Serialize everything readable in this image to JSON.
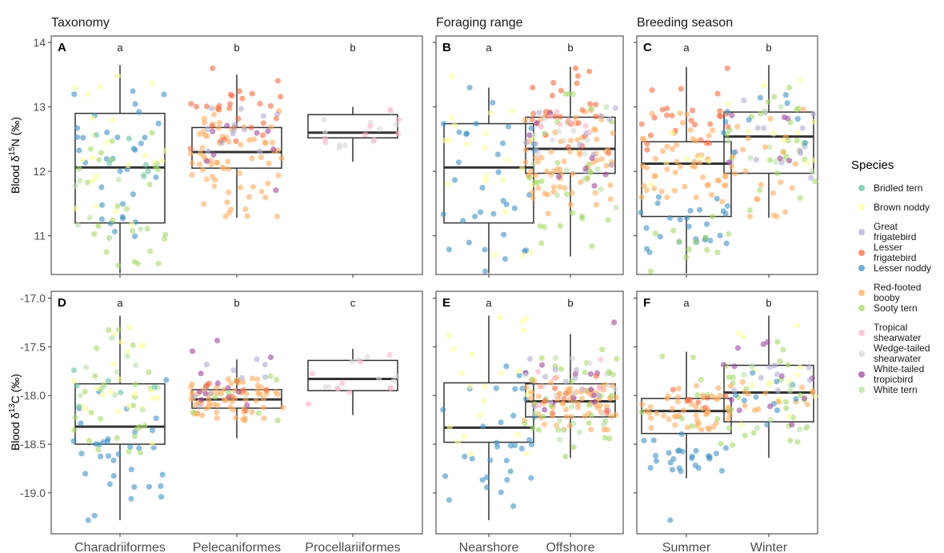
{
  "figure": {
    "facet_titles": [
      "Taxonomy",
      "Foraging range",
      "Breeding season"
    ],
    "ytitle_top": {
      "prefix": "Blood δ",
      "sup": "15",
      "suffix": "N (‰)"
    },
    "ytitle_bottom": {
      "prefix": "Blood δ",
      "sup": "13",
      "suffix": "C (‰)"
    }
  },
  "legend": {
    "title": "Species",
    "items": [
      {
        "lines": [
          "Bridled tern"
        ],
        "color": "#66c2a5"
      },
      {
        "lines": [
          "Brown noddy"
        ],
        "color": "#ffff99"
      },
      {
        "lines": [
          "Great",
          "frigatebird"
        ],
        "color": "#b2abd2"
      },
      {
        "lines": [
          "Lesser",
          "frigatebird"
        ],
        "color": "#f46d43"
      },
      {
        "lines": [
          "Lesser noddy"
        ],
        "color": "#4393c3"
      },
      {
        "lines": [
          "Red-footed",
          "booby"
        ],
        "color": "#fdae61"
      },
      {
        "lines": [
          "Sooty tern"
        ],
        "color": "#a6d96a"
      },
      {
        "lines": [
          "Tropical",
          "shearwater"
        ],
        "color": "#fbb4c4"
      },
      {
        "lines": [
          "Wedge-tailed",
          "shearwater"
        ],
        "color": "#d9d9d9"
      },
      {
        "lines": [
          "White-tailed",
          "tropicbird"
        ],
        "color": "#9e4a9c"
      },
      {
        "lines": [
          "White tern"
        ],
        "color": "#b8e0a8"
      }
    ]
  },
  "chart_data": [
    {
      "panel": "A",
      "facet": "Taxonomy",
      "type": "box",
      "ylabel": "Blood δ15N (‰)",
      "ylim": [
        10.4,
        14.1
      ],
      "yticks": [
        11,
        12,
        13,
        14
      ],
      "ytick_labels": [
        "11",
        "12",
        "13",
        "14"
      ],
      "categories": [
        "Charadriiformes",
        "Pelecaniformes",
        "Procellariiformes"
      ],
      "sig": [
        "a",
        "b",
        "b"
      ],
      "boxes": [
        {
          "q1": 11.2,
          "median": 12.06,
          "q3": 12.9,
          "wlo": 10.42,
          "whi": 13.65
        },
        {
          "q1": 12.05,
          "median": 12.3,
          "q3": 12.68,
          "wlo": 11.28,
          "whi": 13.5
        },
        {
          "q1": 12.52,
          "median": 12.6,
          "q3": 12.88,
          "wlo": 12.15,
          "whi": 13.0
        }
      ],
      "points": [
        {
          "species": "Lesser noddy",
          "cat": 0,
          "n": 34,
          "min": 10.45,
          "max": 13.3
        },
        {
          "species": "Sooty tern",
          "cat": 0,
          "n": 26,
          "min": 10.45,
          "max": 13.2
        },
        {
          "species": "Brown noddy",
          "cat": 0,
          "n": 22,
          "min": 10.7,
          "max": 13.5
        },
        {
          "species": "White tern",
          "cat": 0,
          "n": 10,
          "min": 10.7,
          "max": 13.0
        },
        {
          "species": "Bridled tern",
          "cat": 0,
          "n": 6,
          "min": 11.3,
          "max": 12.8
        },
        {
          "species": "Red-footed booby",
          "cat": 1,
          "n": 70,
          "min": 11.3,
          "max": 13.0
        },
        {
          "species": "Lesser frigatebird",
          "cat": 1,
          "n": 28,
          "min": 12.2,
          "max": 13.6
        },
        {
          "species": "Great frigatebird",
          "cat": 1,
          "n": 12,
          "min": 11.9,
          "max": 13.1
        },
        {
          "species": "White-tailed tropicbird",
          "cat": 1,
          "n": 8,
          "min": 11.7,
          "max": 12.9
        },
        {
          "species": "Wedge-tailed shearwater",
          "cat": 2,
          "n": 10,
          "min": 12.1,
          "max": 13.0
        },
        {
          "species": "Tropical shearwater",
          "cat": 2,
          "n": 8,
          "min": 12.3,
          "max": 13.0
        }
      ]
    },
    {
      "panel": "B",
      "facet": "Foraging range",
      "type": "box",
      "ylim": [
        10.4,
        14.1
      ],
      "yticks": [
        11,
        12,
        13,
        14
      ],
      "categories": [
        "Nearshore",
        "Offshore"
      ],
      "sig": [
        "a",
        "b"
      ],
      "boxes": [
        {
          "q1": 11.2,
          "median": 12.06,
          "q3": 12.74,
          "wlo": 10.42,
          "whi": 13.3
        },
        {
          "q1": 11.97,
          "median": 12.35,
          "q3": 12.84,
          "wlo": 10.68,
          "whi": 13.62
        }
      ],
      "points": [
        {
          "species": "Lesser noddy",
          "cat": 0,
          "n": 34,
          "min": 10.45,
          "max": 13.3
        },
        {
          "species": "Brown noddy",
          "cat": 0,
          "n": 22,
          "min": 10.7,
          "max": 13.6
        },
        {
          "species": "Red-footed booby",
          "cat": 1,
          "n": 70,
          "min": 11.3,
          "max": 13.0
        },
        {
          "species": "Lesser frigatebird",
          "cat": 1,
          "n": 28,
          "min": 12.2,
          "max": 13.6
        },
        {
          "species": "Sooty tern",
          "cat": 1,
          "n": 26,
          "min": 10.45,
          "max": 13.2
        },
        {
          "species": "Great frigatebird",
          "cat": 1,
          "n": 12,
          "min": 11.9,
          "max": 13.1
        },
        {
          "species": "White tern",
          "cat": 1,
          "n": 10,
          "min": 10.7,
          "max": 13.0
        },
        {
          "species": "White-tailed tropicbird",
          "cat": 1,
          "n": 8,
          "min": 11.7,
          "max": 12.9
        },
        {
          "species": "Wedge-tailed shearwater",
          "cat": 1,
          "n": 10,
          "min": 12.1,
          "max": 13.0
        },
        {
          "species": "Tropical shearwater",
          "cat": 1,
          "n": 8,
          "min": 12.3,
          "max": 13.0
        }
      ]
    },
    {
      "panel": "C",
      "facet": "Breeding season",
      "type": "box",
      "ylim": [
        10.4,
        14.1
      ],
      "yticks": [
        11,
        12,
        13,
        14
      ],
      "categories": [
        "Summer",
        "Winter"
      ],
      "sig": [
        "a",
        "b"
      ],
      "boxes": [
        {
          "q1": 11.3,
          "median": 12.12,
          "q3": 12.46,
          "wlo": 10.42,
          "whi": 13.62
        },
        {
          "q1": 11.97,
          "median": 12.54,
          "q3": 12.92,
          "wlo": 11.28,
          "whi": 13.65
        }
      ],
      "points": [
        {
          "species": "Red-footed booby",
          "cat": 0,
          "n": 50,
          "min": 11.4,
          "max": 12.9
        },
        {
          "species": "Lesser frigatebird",
          "cat": 0,
          "n": 26,
          "min": 12.2,
          "max": 13.6
        },
        {
          "species": "Lesser noddy",
          "cat": 0,
          "n": 26,
          "min": 10.45,
          "max": 11.7
        },
        {
          "species": "Sooty tern",
          "cat": 0,
          "n": 12,
          "min": 10.45,
          "max": 11.3
        },
        {
          "species": "Brown noddy",
          "cat": 0,
          "n": 6,
          "min": 11.6,
          "max": 12.6
        },
        {
          "species": "Sooty tern",
          "cat": 1,
          "n": 24,
          "min": 11.4,
          "max": 13.4
        },
        {
          "species": "Red-footed booby",
          "cat": 1,
          "n": 26,
          "min": 11.3,
          "max": 13.0
        },
        {
          "species": "Great frigatebird",
          "cat": 1,
          "n": 14,
          "min": 11.9,
          "max": 13.1
        },
        {
          "species": "Lesser noddy",
          "cat": 1,
          "n": 10,
          "min": 12.2,
          "max": 13.3
        },
        {
          "species": "Brown noddy",
          "cat": 1,
          "n": 10,
          "min": 12.0,
          "max": 13.6
        },
        {
          "species": "White tern",
          "cat": 1,
          "n": 8,
          "min": 11.7,
          "max": 13.0
        },
        {
          "species": "White-tailed tropicbird",
          "cat": 1,
          "n": 6,
          "min": 12.0,
          "max": 12.9
        }
      ]
    },
    {
      "panel": "D",
      "facet": "Taxonomy",
      "type": "box",
      "ylabel": "Blood δ13C (‰)",
      "ylim": [
        -19.42,
        -16.93
      ],
      "yticks": [
        -17.0,
        -17.5,
        -18.0,
        -18.5,
        -19.0
      ],
      "ytick_labels": [
        "-17.0",
        "-17.5",
        "-18.0",
        "-18.5",
        "-19.0"
      ],
      "categories": [
        "Charadriiformes",
        "Pelecaniformes",
        "Procellariiformes"
      ],
      "sig": [
        "a",
        "b",
        "c"
      ],
      "boxes": [
        {
          "q1": -18.5,
          "median": -18.32,
          "q3": -17.88,
          "wlo": -19.28,
          "whi": -17.18
        },
        {
          "q1": -18.13,
          "median": -18.04,
          "q3": -17.94,
          "wlo": -18.44,
          "whi": -17.63
        },
        {
          "q1": -17.95,
          "median": -17.83,
          "q3": -17.64,
          "wlo": -18.2,
          "whi": -17.52
        }
      ],
      "points": [
        {
          "species": "Lesser noddy",
          "cat": 0,
          "n": 34,
          "min": -19.28,
          "max": -17.7
        },
        {
          "species": "Sooty tern",
          "cat": 0,
          "n": 26,
          "min": -18.7,
          "max": -17.3
        },
        {
          "species": "Brown noddy",
          "cat": 0,
          "n": 22,
          "min": -18.6,
          "max": -17.2
        },
        {
          "species": "White tern",
          "cat": 0,
          "n": 10,
          "min": -18.6,
          "max": -17.4
        },
        {
          "species": "Bridled tern",
          "cat": 0,
          "n": 6,
          "min": -18.3,
          "max": -17.6
        },
        {
          "species": "Red-footed booby",
          "cat": 1,
          "n": 70,
          "min": -18.3,
          "max": -17.8
        },
        {
          "species": "White-tailed tropicbird",
          "cat": 1,
          "n": 12,
          "min": -18.5,
          "max": -17.25
        },
        {
          "species": "Great frigatebird",
          "cat": 1,
          "n": 10,
          "min": -18.2,
          "max": -17.6
        },
        {
          "species": "Sooty tern",
          "cat": 1,
          "n": 8,
          "min": -18.3,
          "max": -17.8
        },
        {
          "species": "Lesser frigatebird",
          "cat": 1,
          "n": 8,
          "min": -18.2,
          "max": -17.8
        },
        {
          "species": "Wedge-tailed shearwater",
          "cat": 2,
          "n": 10,
          "min": -18.2,
          "max": -17.5
        },
        {
          "species": "Tropical shearwater",
          "cat": 2,
          "n": 8,
          "min": -18.1,
          "max": -17.55
        }
      ]
    },
    {
      "panel": "E",
      "facet": "Foraging range",
      "type": "box",
      "ylim": [
        -19.42,
        -16.93
      ],
      "yticks": [
        -17.0,
        -17.5,
        -18.0,
        -18.5,
        -19.0
      ],
      "categories": [
        "Nearshore",
        "Offshore"
      ],
      "sig": [
        "a",
        "b"
      ],
      "boxes": [
        {
          "q1": -18.48,
          "median": -18.33,
          "q3": -17.87,
          "wlo": -19.28,
          "whi": -17.18
        },
        {
          "q1": -18.22,
          "median": -18.06,
          "q3": -17.88,
          "wlo": -18.64,
          "whi": -17.37
        }
      ],
      "points": [
        {
          "species": "Lesser noddy",
          "cat": 0,
          "n": 34,
          "min": -19.28,
          "max": -17.7
        },
        {
          "species": "Brown noddy",
          "cat": 0,
          "n": 22,
          "min": -18.6,
          "max": -17.2
        },
        {
          "species": "Red-footed booby",
          "cat": 1,
          "n": 70,
          "min": -18.35,
          "max": -17.8
        },
        {
          "species": "Sooty tern",
          "cat": 1,
          "n": 30,
          "min": -18.65,
          "max": -17.4
        },
        {
          "species": "White tern",
          "cat": 1,
          "n": 10,
          "min": -18.6,
          "max": -17.6
        },
        {
          "species": "White-tailed tropicbird",
          "cat": 1,
          "n": 12,
          "min": -18.5,
          "max": -17.25
        },
        {
          "species": "Great frigatebird",
          "cat": 1,
          "n": 10,
          "min": -18.2,
          "max": -17.6
        },
        {
          "species": "Lesser frigatebird",
          "cat": 1,
          "n": 8,
          "min": -18.2,
          "max": -17.8
        },
        {
          "species": "Wedge-tailed shearwater",
          "cat": 1,
          "n": 10,
          "min": -18.2,
          "max": -17.5
        },
        {
          "species": "Tropical shearwater",
          "cat": 1,
          "n": 8,
          "min": -18.1,
          "max": -17.55
        }
      ]
    },
    {
      "panel": "F",
      "facet": "Breeding season",
      "type": "box",
      "ylim": [
        -19.42,
        -16.93
      ],
      "yticks": [
        -17.0,
        -17.5,
        -18.0,
        -18.5,
        -19.0
      ],
      "categories": [
        "Summer",
        "Winter"
      ],
      "sig": [
        "a",
        "b"
      ],
      "boxes": [
        {
          "q1": -18.39,
          "median": -18.16,
          "q3": -18.03,
          "wlo": -18.85,
          "whi": -17.55
        },
        {
          "q1": -18.27,
          "median": -17.97,
          "q3": -17.69,
          "wlo": -18.64,
          "whi": -17.18
        }
      ],
      "points": [
        {
          "species": "Red-footed booby",
          "cat": 0,
          "n": 50,
          "min": -18.35,
          "max": -17.9
        },
        {
          "species": "Lesser noddy",
          "cat": 0,
          "n": 26,
          "min": -18.85,
          "max": -18.35
        },
        {
          "species": "Sooty tern",
          "cat": 0,
          "n": 12,
          "min": -18.5,
          "max": -17.6
        },
        {
          "species": "Lesser frigatebird",
          "cat": 0,
          "n": 8,
          "min": -18.2,
          "max": -17.9
        },
        {
          "species": "Lesser noddy",
          "cat": 0,
          "n": 1,
          "min": -19.28,
          "max": -19.28
        },
        {
          "species": "Sooty tern",
          "cat": 1,
          "n": 24,
          "min": -18.6,
          "max": -17.4
        },
        {
          "species": "Brown noddy",
          "cat": 1,
          "n": 14,
          "min": -18.3,
          "max": -17.2
        },
        {
          "species": "White-tailed tropicbird",
          "cat": 1,
          "n": 12,
          "min": -18.3,
          "max": -17.25
        },
        {
          "species": "Red-footed booby",
          "cat": 1,
          "n": 14,
          "min": -18.2,
          "max": -17.8
        },
        {
          "species": "Lesser noddy",
          "cat": 1,
          "n": 10,
          "min": -18.3,
          "max": -17.7
        },
        {
          "species": "Great frigatebird",
          "cat": 1,
          "n": 8,
          "min": -18.1,
          "max": -17.6
        },
        {
          "species": "White tern",
          "cat": 1,
          "n": 8,
          "min": -18.6,
          "max": -17.7
        }
      ]
    }
  ]
}
